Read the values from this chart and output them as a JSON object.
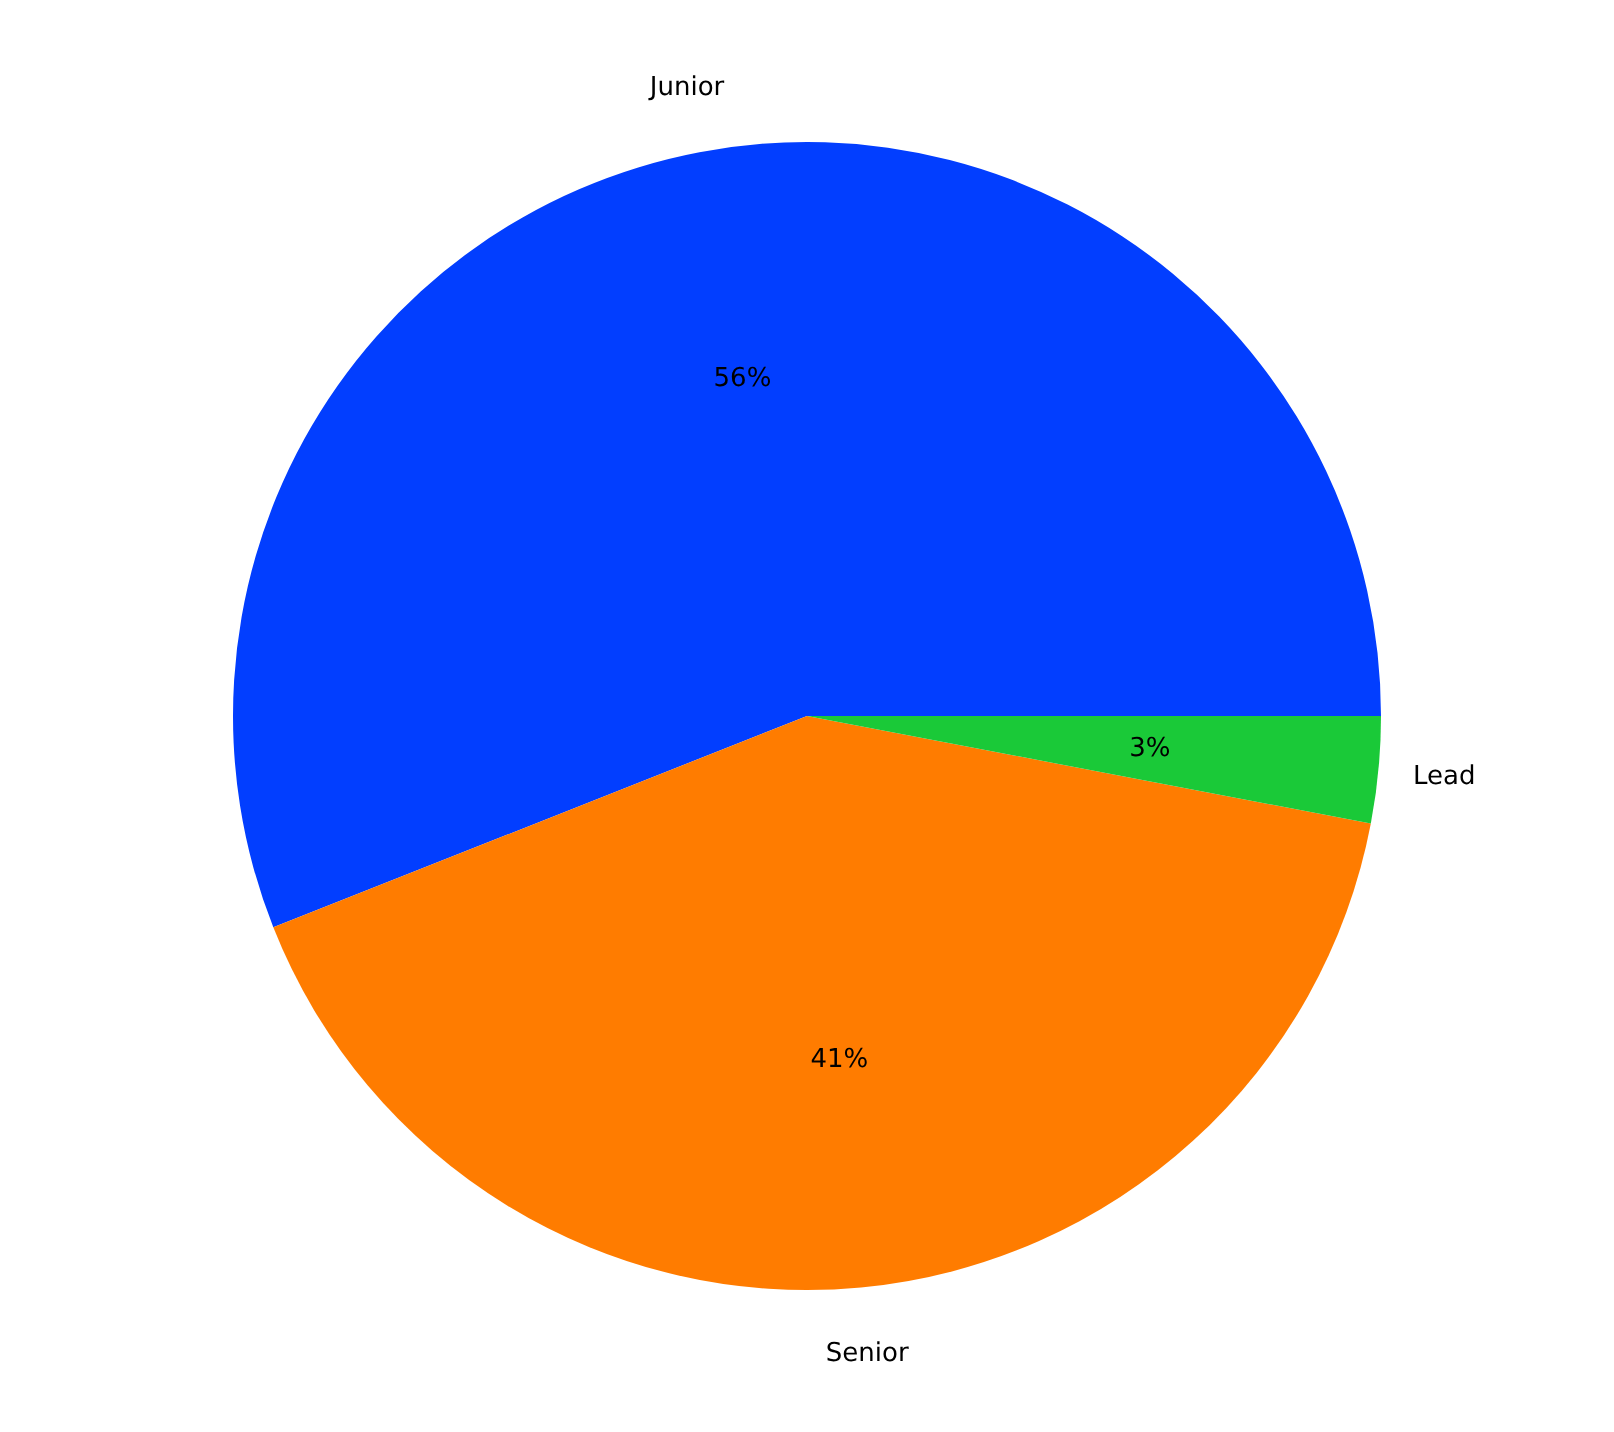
{
  "chart_data": {
    "type": "pie",
    "categories": [
      "Junior",
      "Senior",
      "Lead"
    ],
    "values": [
      56,
      41,
      3
    ],
    "colors": [
      "#023eff",
      "#ff7c00",
      "#1ac938"
    ],
    "value_labels": [
      "56%",
      "41%",
      "3%"
    ]
  }
}
